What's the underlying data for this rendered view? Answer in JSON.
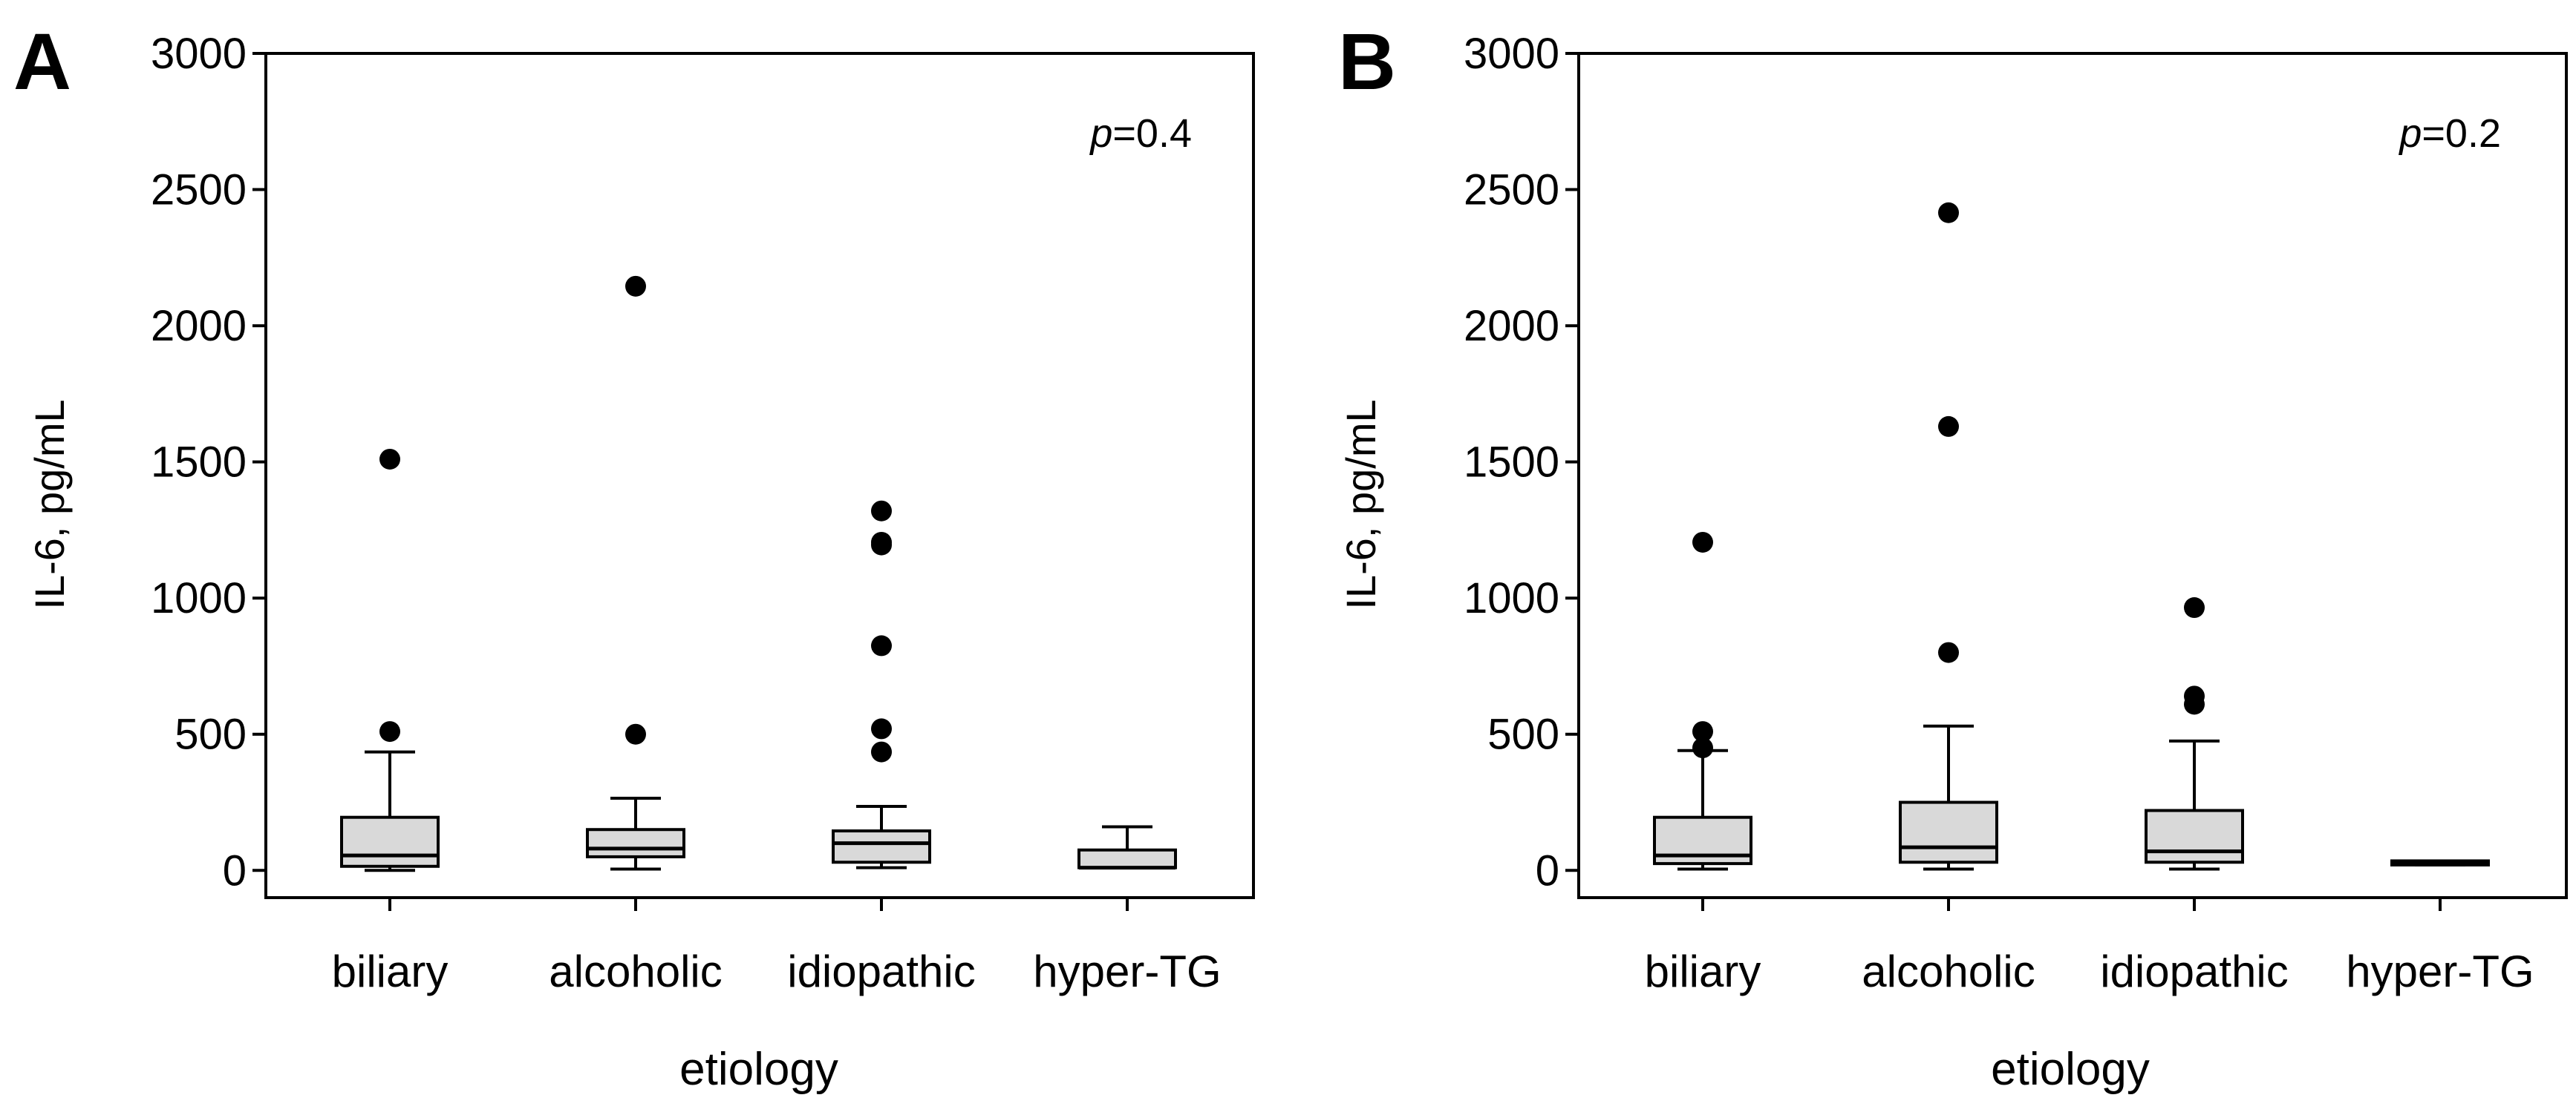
{
  "colors": {
    "box_fill": "#d9d9d9",
    "stroke": "#000000",
    "outlier": "#000000",
    "background": "#ffffff"
  },
  "chart_data": [
    {
      "type": "box",
      "panel_label": "A",
      "p_value": {
        "prefix": "p",
        "text": "=0.4"
      },
      "xlabel": "etiology",
      "ylabel": "IL-6, pg/mL",
      "ylim": [
        -100,
        3000
      ],
      "yticks": [
        0,
        500,
        1000,
        1500,
        2000,
        2500,
        3000
      ],
      "categories": [
        "biliary",
        "alcoholic",
        "idiopathic",
        "hyper-TG"
      ],
      "boxes": [
        {
          "category": "biliary",
          "whisker_low": 0,
          "q1": 15,
          "median": 55,
          "q3": 195,
          "whisker_high": 435,
          "outliers": [
            510,
            1510
          ]
        },
        {
          "category": "alcoholic",
          "whisker_low": 5,
          "q1": 50,
          "median": 80,
          "q3": 150,
          "whisker_high": 265,
          "outliers": [
            500,
            2145
          ]
        },
        {
          "category": "idiopathic",
          "whisker_low": 10,
          "q1": 30,
          "median": 100,
          "q3": 145,
          "whisker_high": 235,
          "outliers": [
            435,
            520,
            825,
            1195,
            1205,
            1320
          ]
        },
        {
          "category": "hyper-TG",
          "whisker_low": 10,
          "q1": 10,
          "median": 10,
          "q3": 75,
          "whisker_high": 160,
          "outliers": []
        }
      ]
    },
    {
      "type": "box",
      "panel_label": "B",
      "p_value": {
        "prefix": "p",
        "text": "=0.2"
      },
      "xlabel": "etiology",
      "ylabel": "IL-6, pg/mL",
      "ylim": [
        -100,
        3000
      ],
      "yticks": [
        0,
        500,
        1000,
        1500,
        2000,
        2500,
        3000
      ],
      "categories": [
        "biliary",
        "alcoholic",
        "idiopathic",
        "hyper-TG"
      ],
      "boxes": [
        {
          "category": "biliary",
          "whisker_low": 5,
          "q1": 25,
          "median": 55,
          "q3": 195,
          "whisker_high": 440,
          "outliers": [
            450,
            510,
            1205
          ]
        },
        {
          "category": "alcoholic",
          "whisker_low": 5,
          "q1": 30,
          "median": 85,
          "q3": 250,
          "whisker_high": 530,
          "outliers": [
            800,
            1630,
            2415
          ]
        },
        {
          "category": "idiopathic",
          "whisker_low": 5,
          "q1": 30,
          "median": 70,
          "q3": 220,
          "whisker_high": 475,
          "outliers": [
            610,
            640,
            965
          ]
        },
        {
          "category": "hyper-TG",
          "whisker_low": 20,
          "q1": 20,
          "median": 25,
          "q3": 35,
          "whisker_high": 35,
          "outliers": []
        }
      ]
    }
  ]
}
